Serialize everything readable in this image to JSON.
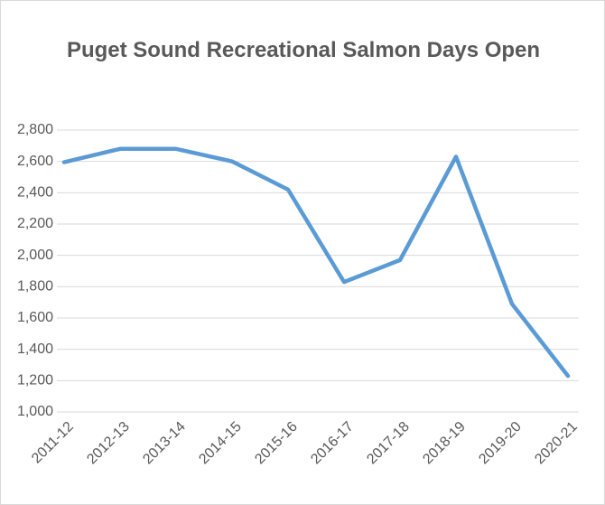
{
  "chart_data": {
    "type": "line",
    "title": "Puget Sound Recreational Salmon Days Open",
    "categories": [
      "2011-12",
      "2012-13",
      "2013-14",
      "2014-15",
      "2015-16",
      "2016-17",
      "2017-18",
      "2018-19",
      "2019-20",
      "2020-21"
    ],
    "values": [
      2595,
      2680,
      2680,
      2600,
      2420,
      1830,
      1970,
      2630,
      1690,
      1230
    ],
    "color": "#5b9bd5",
    "ylim": [
      1000,
      2800
    ],
    "yticks": [
      {
        "value": 1000,
        "label": "1,000"
      },
      {
        "value": 1200,
        "label": "1,200"
      },
      {
        "value": 1400,
        "label": "1,400"
      },
      {
        "value": 1600,
        "label": "1,600"
      },
      {
        "value": 1800,
        "label": "1,800"
      },
      {
        "value": 2000,
        "label": "2,000"
      },
      {
        "value": 2200,
        "label": "2,200"
      },
      {
        "value": 2400,
        "label": "2,400"
      },
      {
        "value": 2600,
        "label": "2,600"
      },
      {
        "value": 2800,
        "label": "2,800"
      }
    ],
    "grid": true
  }
}
